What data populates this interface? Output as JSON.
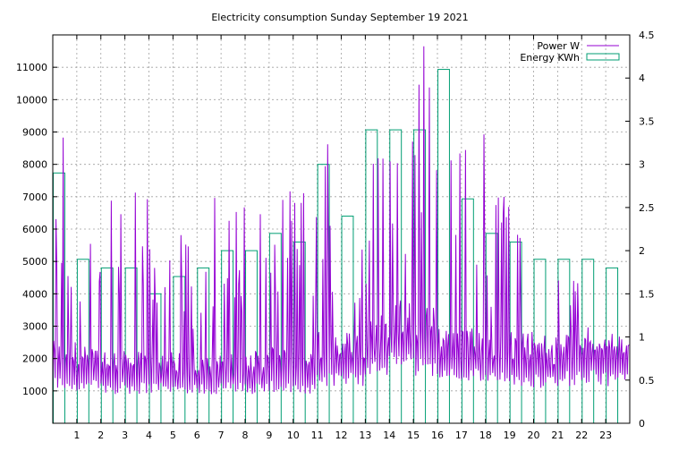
{
  "chart_data": {
    "type": "line",
    "title": "Electricity consumption Sunday September 19 2021",
    "xlabel": "",
    "ylabel": "",
    "y2label": "",
    "x_ticks": [
      "1",
      "2",
      "3",
      "4",
      "5",
      "6",
      "7",
      "8",
      "9",
      "10",
      "11",
      "12",
      "13",
      "14",
      "15",
      "16",
      "17",
      "18",
      "19",
      "20",
      "21",
      "22",
      "23"
    ],
    "x_range": [
      0,
      24
    ],
    "y_range": [
      0,
      12000
    ],
    "y_ticks": [
      "1000",
      "2000",
      "3000",
      "4000",
      "5000",
      "6000",
      "7000",
      "8000",
      "9000",
      "10000",
      "11000"
    ],
    "y2_range": [
      0,
      4.5
    ],
    "y2_ticks": [
      "0",
      "0.5",
      "1",
      "1.5",
      "2",
      "2.5",
      "3",
      "3.5",
      "4",
      "4.5"
    ],
    "grid": true,
    "legend_position": "top-right",
    "colors": {
      "power": "#9400d3",
      "energy": "#009e73",
      "grid": "#a0a0a0",
      "axis": "#000000"
    },
    "series": [
      {
        "name": "Power W",
        "axis": "left",
        "style": "line",
        "hourly_base": [
          1700,
          1600,
          1500,
          1500,
          1500,
          1450,
          1450,
          1500,
          1500,
          1600,
          1500,
          1900,
          1900,
          2300,
          2600,
          2400,
          2000,
          2000,
          1900,
          1900,
          1800,
          1900,
          2000,
          1900
        ],
        "hourly_peak": [
          9000,
          6000,
          7200,
          7200,
          7200,
          6000,
          7200,
          7200,
          7200,
          7200,
          7200,
          9000,
          7200,
          9000,
          9000,
          12000,
          9000,
          9000,
          7200,
          6000,
          2800,
          4500,
          2800,
          2700
        ]
      },
      {
        "name": "Energy KWh",
        "axis": "right",
        "style": "boxes",
        "x": [
          0,
          1,
          2,
          3,
          4,
          5,
          6,
          7,
          8,
          9,
          10,
          11,
          12,
          13,
          14,
          15,
          16,
          17,
          18,
          19,
          20,
          21,
          22,
          23
        ],
        "values": [
          2.9,
          1.9,
          1.8,
          1.8,
          1.5,
          1.7,
          1.8,
          2.0,
          2.0,
          2.2,
          2.1,
          3.0,
          2.4,
          3.4,
          3.4,
          3.4,
          4.1,
          2.6,
          2.2,
          2.1,
          1.9,
          1.9,
          1.9,
          1.8
        ]
      }
    ]
  }
}
